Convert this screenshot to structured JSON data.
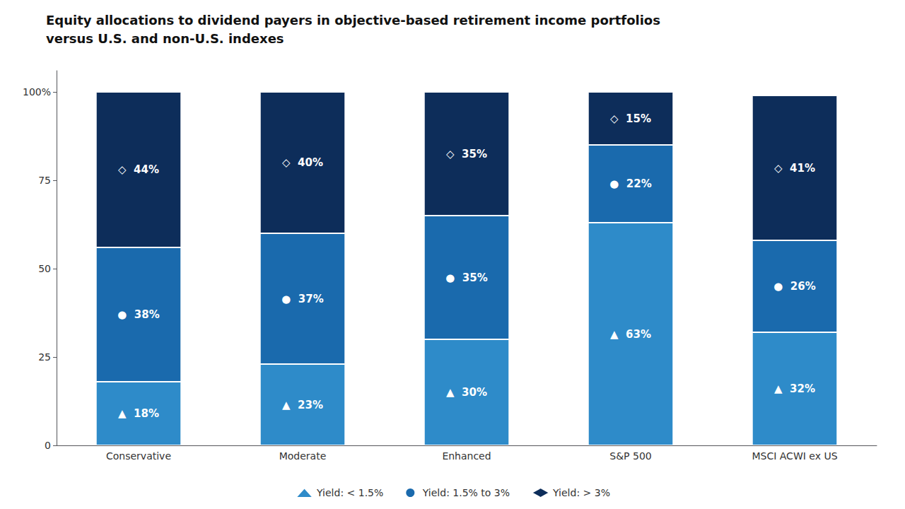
{
  "chart_data": {
    "type": "bar",
    "title": "Equity allocations to dividend payers in objective-based retirement income portfolios",
    "subtitle": "versus U.S. and non-U.S. indexes",
    "categories": [
      "Conservative",
      "Moderate",
      "Enhanced",
      "S&P 500",
      "MSCI ACWI ex US"
    ],
    "series": [
      {
        "name": "Yield: < 1.5%",
        "color": "#2e8bc9",
        "marker": "triangle",
        "values": [
          18,
          23,
          30,
          63,
          32
        ],
        "value_labels": [
          "▲  18%",
          "▲  23%",
          "▲  30%",
          "▲  63%",
          "▲  32%"
        ]
      },
      {
        "name": "Yield: 1.5% to 3%",
        "color": "#1a6aad",
        "marker": "circle",
        "values": [
          38,
          37,
          35,
          22,
          26
        ],
        "value_labels": [
          "●  38%",
          "●  37%",
          "●  35%",
          "●  22%",
          "●  26%"
        ]
      },
      {
        "name": "Yield: > 3%",
        "color": "#0d2d5a",
        "marker": "diamond",
        "values": [
          44,
          40,
          35,
          15,
          41
        ],
        "value_labels": [
          "◇  44%",
          "◇  40%",
          "◇  35%",
          "◇  15%",
          "◇  41%"
        ]
      }
    ],
    "stacked": true,
    "data_labels": true,
    "ylim": [
      0,
      106
    ],
    "yticks": [
      0,
      25,
      50,
      75,
      {
        "value": 100,
        "label": "100%"
      }
    ],
    "grid": false,
    "legend": "bottom"
  }
}
